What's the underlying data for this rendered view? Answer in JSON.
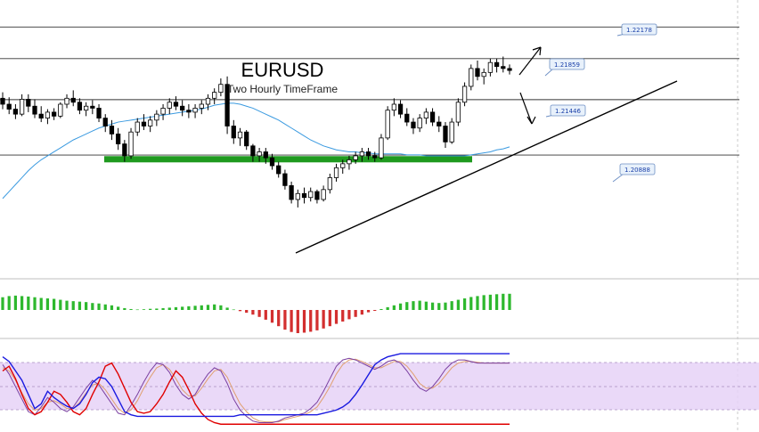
{
  "chart_data": {
    "type": "candlestick",
    "title": "EURUSD",
    "subtitle": "Two Hourly TimeFrame",
    "price_range": [
      1.1965,
      1.2245
    ],
    "horizontal_levels": [
      {
        "label": "1.22178",
        "value": 1.22178
      },
      {
        "label": "1.21859",
        "value": 1.21859
      },
      {
        "label": "1.21446",
        "value": 1.21446
      },
      {
        "label": "1.20888",
        "value": 1.20888
      }
    ],
    "support_zone": {
      "value": 1.2085,
      "color": "#1f9a1f"
    },
    "candles": [
      [
        1.2146,
        1.2152,
        1.2135,
        1.214
      ],
      [
        1.214,
        1.2147,
        1.213,
        1.2135
      ],
      [
        1.2135,
        1.214,
        1.2125,
        1.213
      ],
      [
        1.213,
        1.215,
        1.2128,
        1.2145
      ],
      [
        1.2145,
        1.215,
        1.2132,
        1.2138
      ],
      [
        1.2138,
        1.2145,
        1.2126,
        1.213
      ],
      [
        1.213,
        1.2138,
        1.2122,
        1.2126
      ],
      [
        1.2126,
        1.2135,
        1.212,
        1.2132
      ],
      [
        1.2132,
        1.2136,
        1.2124,
        1.2128
      ],
      [
        1.2128,
        1.2142,
        1.2126,
        1.214
      ],
      [
        1.214,
        1.215,
        1.2136,
        1.2146
      ],
      [
        1.2146,
        1.2154,
        1.2138,
        1.2142
      ],
      [
        1.2142,
        1.2146,
        1.213,
        1.2134
      ],
      [
        1.2134,
        1.2142,
        1.2128,
        1.2138
      ],
      [
        1.2138,
        1.2144,
        1.213,
        1.2136
      ],
      [
        1.2136,
        1.214,
        1.2122,
        1.2126
      ],
      [
        1.2126,
        1.213,
        1.2112,
        1.2118
      ],
      [
        1.2118,
        1.2124,
        1.2104,
        1.211
      ],
      [
        1.211,
        1.2116,
        1.2094,
        1.21
      ],
      [
        1.21,
        1.2104,
        1.2082,
        1.2088
      ],
      [
        1.2088,
        1.2116,
        1.2085,
        1.2112
      ],
      [
        1.2112,
        1.2126,
        1.2108,
        1.2122
      ],
      [
        1.2122,
        1.213,
        1.2114,
        1.2118
      ],
      [
        1.2118,
        1.2128,
        1.2112,
        1.2124
      ],
      [
        1.2124,
        1.2134,
        1.2118,
        1.213
      ],
      [
        1.213,
        1.214,
        1.2124,
        1.2136
      ],
      [
        1.2136,
        1.2146,
        1.213,
        1.2142
      ],
      [
        1.2142,
        1.2148,
        1.2134,
        1.2138
      ],
      [
        1.2138,
        1.2144,
        1.2128,
        1.2134
      ],
      [
        1.2134,
        1.214,
        1.2126,
        1.2132
      ],
      [
        1.2132,
        1.214,
        1.2126,
        1.2136
      ],
      [
        1.2136,
        1.2144,
        1.213,
        1.214
      ],
      [
        1.214,
        1.215,
        1.2134,
        1.2146
      ],
      [
        1.2146,
        1.2156,
        1.214,
        1.2152
      ],
      [
        1.2152,
        1.2166,
        1.2148,
        1.216
      ],
      [
        1.216,
        1.2168,
        1.211,
        1.2118
      ],
      [
        1.2118,
        1.2124,
        1.21,
        1.2106
      ],
      [
        1.2106,
        1.2116,
        1.2098,
        1.2112
      ],
      [
        1.2112,
        1.2114,
        1.2094,
        1.2098
      ],
      [
        1.2098,
        1.21,
        1.2082,
        1.2088
      ],
      [
        1.2088,
        1.2096,
        1.2082,
        1.2092
      ],
      [
        1.2092,
        1.2096,
        1.208,
        1.2086
      ],
      [
        1.2086,
        1.209,
        1.2074,
        1.2078
      ],
      [
        1.2078,
        1.2082,
        1.2066,
        1.207
      ],
      [
        1.207,
        1.2074,
        1.2054,
        1.2058
      ],
      [
        1.2058,
        1.2062,
        1.204,
        1.2044
      ],
      [
        1.2044,
        1.2054,
        1.2036,
        1.205
      ],
      [
        1.205,
        1.2056,
        1.204,
        1.2046
      ],
      [
        1.2046,
        1.2056,
        1.2042,
        1.2052
      ],
      [
        1.2052,
        1.2054,
        1.204,
        1.2044
      ],
      [
        1.2044,
        1.2058,
        1.2042,
        1.2054
      ],
      [
        1.2054,
        1.207,
        1.205,
        1.2066
      ],
      [
        1.2066,
        1.208,
        1.2062,
        1.2076
      ],
      [
        1.2076,
        1.2084,
        1.207,
        1.208
      ],
      [
        1.208,
        1.2088,
        1.2074,
        1.2084
      ],
      [
        1.2084,
        1.2092,
        1.208,
        1.2088
      ],
      [
        1.2088,
        1.2096,
        1.2082,
        1.2092
      ],
      [
        1.2092,
        1.2096,
        1.2084,
        1.2088
      ],
      [
        1.2088,
        1.2092,
        1.2082,
        1.2086
      ],
      [
        1.2086,
        1.211,
        1.2084,
        1.2106
      ],
      [
        1.2106,
        1.2138,
        1.2104,
        1.2134
      ],
      [
        1.2134,
        1.2146,
        1.2128,
        1.214
      ],
      [
        1.214,
        1.2144,
        1.2126,
        1.213
      ],
      [
        1.213,
        1.2136,
        1.2118,
        1.2122
      ],
      [
        1.2122,
        1.2126,
        1.211,
        1.2116
      ],
      [
        1.2116,
        1.213,
        1.2112,
        1.2126
      ],
      [
        1.2126,
        1.2136,
        1.212,
        1.2132
      ],
      [
        1.2132,
        1.2136,
        1.2118,
        1.2122
      ],
      [
        1.2122,
        1.2128,
        1.2112,
        1.2118
      ],
      [
        1.2118,
        1.2122,
        1.2096,
        1.2102
      ],
      [
        1.2102,
        1.2126,
        1.21,
        1.2122
      ],
      [
        1.2122,
        1.2146,
        1.2118,
        1.2142
      ],
      [
        1.2142,
        1.2162,
        1.2138,
        1.2158
      ],
      [
        1.2158,
        1.218,
        1.2154,
        1.2176
      ],
      [
        1.2176,
        1.2184,
        1.2164,
        1.2168
      ],
      [
        1.2168,
        1.2176,
        1.216,
        1.2172
      ],
      [
        1.2172,
        1.2186,
        1.2168,
        1.2182
      ],
      [
        1.2182,
        1.2186,
        1.2172,
        1.2178
      ],
      [
        1.2178,
        1.2188,
        1.2172,
        1.2176
      ],
      [
        1.2176,
        1.218,
        1.217,
        1.2174
      ]
    ],
    "moving_average": [
      1.2045,
      1.2052,
      1.2059,
      1.2066,
      1.2073,
      1.2079,
      1.2084,
      1.2088,
      1.2092,
      1.2096,
      1.21,
      1.2104,
      1.2107,
      1.211,
      1.2113,
      1.2116,
      1.2118,
      1.212,
      1.2122,
      1.2123,
      1.2124,
      1.2125,
      1.2126,
      1.2127,
      1.2128,
      1.2129,
      1.213,
      1.2131,
      1.2132,
      1.2133,
      1.2134,
      1.2135,
      1.2137,
      1.2139,
      1.214,
      1.2141,
      1.2141,
      1.214,
      1.2138,
      1.2136,
      1.2133,
      1.213,
      1.2127,
      1.2124,
      1.212,
      1.2116,
      1.2112,
      1.2108,
      1.2104,
      1.2101,
      1.2098,
      1.2096,
      1.2094,
      1.2093,
      1.2092,
      1.2092,
      1.2091,
      1.2091,
      1.209,
      1.209,
      1.209,
      1.209,
      1.209,
      1.2089,
      1.2089,
      1.2089,
      1.2088,
      1.2088,
      1.2088,
      1.2088,
      1.2088,
      1.2088,
      1.2088,
      1.2089,
      1.209,
      1.2091,
      1.2092,
      1.2094,
      1.2095,
      1.2097
    ],
    "histogram": [
      0.55,
      0.6,
      0.62,
      0.6,
      0.58,
      0.55,
      0.52,
      0.5,
      0.48,
      0.44,
      0.4,
      0.38,
      0.36,
      0.34,
      0.3,
      0.28,
      0.24,
      0.2,
      0.14,
      0.08,
      0.04,
      0.02,
      0.03,
      0.05,
      0.06,
      0.08,
      0.1,
      0.12,
      0.14,
      0.16,
      0.18,
      0.2,
      0.22,
      0.24,
      0.2,
      0.1,
      0.02,
      -0.05,
      -0.12,
      -0.2,
      -0.3,
      -0.42,
      -0.55,
      -0.7,
      -0.85,
      -0.95,
      -1.0,
      -0.98,
      -0.94,
      -0.88,
      -0.8,
      -0.7,
      -0.6,
      -0.5,
      -0.4,
      -0.3,
      -0.2,
      -0.1,
      -0.04,
      0.04,
      0.12,
      0.2,
      0.28,
      0.34,
      0.38,
      0.4,
      0.36,
      0.32,
      0.3,
      0.32,
      0.38,
      0.44,
      0.5,
      0.56,
      0.6,
      0.64,
      0.66,
      0.68,
      0.7,
      0.7
    ],
    "stochastic_blue": [
      88,
      82,
      70,
      58,
      40,
      22,
      28,
      44,
      36,
      30,
      25,
      22,
      28,
      40,
      55,
      62,
      60,
      50,
      34,
      18,
      14,
      12,
      12,
      12,
      12,
      12,
      12,
      12,
      12,
      12,
      12,
      12,
      12,
      12,
      12,
      12,
      12,
      14,
      14,
      14,
      14,
      14,
      14,
      14,
      14,
      14,
      14,
      14,
      14,
      14,
      16,
      18,
      20,
      24,
      30,
      40,
      52,
      65,
      78,
      84,
      88,
      90,
      92,
      92,
      92,
      92,
      92,
      92,
      92,
      92,
      92,
      92,
      92,
      92,
      92,
      92,
      92,
      92,
      92,
      92
    ],
    "stochastic_red": [
      70,
      76,
      60,
      40,
      22,
      14,
      18,
      30,
      44,
      40,
      30,
      18,
      14,
      22,
      40,
      56,
      76,
      80,
      66,
      48,
      30,
      18,
      16,
      18,
      28,
      40,
      56,
      70,
      62,
      46,
      28,
      16,
      8,
      4,
      2,
      2,
      2,
      2,
      2,
      2,
      2,
      2,
      2,
      2,
      2,
      2,
      2,
      2,
      2,
      2,
      2,
      2,
      2,
      2,
      2,
      2,
      2,
      2,
      2,
      2,
      2,
      2,
      2,
      2,
      2,
      2,
      2,
      2,
      2,
      2,
      2,
      2,
      2,
      2,
      2,
      2,
      2,
      2,
      2,
      2
    ],
    "stochastic_k": [
      78,
      66,
      50,
      34,
      18,
      14,
      24,
      36,
      30,
      22,
      18,
      24,
      36,
      48,
      58,
      52,
      40,
      28,
      16,
      14,
      26,
      40,
      56,
      70,
      80,
      78,
      68,
      52,
      40,
      34,
      40,
      54,
      66,
      74,
      70,
      54,
      34,
      20,
      12,
      6,
      4,
      4,
      4,
      6,
      10,
      12,
      14,
      16,
      22,
      30,
      44,
      60,
      76,
      84,
      86,
      84,
      80,
      76,
      72,
      76,
      82,
      84,
      80,
      70,
      58,
      48,
      44,
      50,
      60,
      72,
      80,
      84,
      84,
      82,
      80,
      80,
      80,
      80,
      80,
      80
    ],
    "stochastic_d": [
      74,
      70,
      58,
      42,
      28,
      20,
      22,
      30,
      32,
      28,
      22,
      22,
      30,
      42,
      52,
      54,
      46,
      34,
      22,
      16,
      20,
      32,
      48,
      62,
      74,
      78,
      72,
      60,
      46,
      38,
      38,
      48,
      60,
      70,
      72,
      62,
      44,
      28,
      18,
      10,
      6,
      5,
      5,
      5,
      8,
      10,
      12,
      14,
      18,
      24,
      36,
      50,
      66,
      78,
      84,
      85,
      82,
      78,
      74,
      74,
      78,
      82,
      82,
      76,
      66,
      54,
      48,
      48,
      54,
      64,
      74,
      80,
      82,
      82,
      81,
      80,
      80,
      80,
      80,
      80
    ]
  },
  "colors": {
    "up_candle": "#ffffff",
    "down_candle": "#000000",
    "candle_outline": "#000000",
    "moving_average": "#3a9ae0",
    "support_zone": "#1f9a1f",
    "histogram_up": "#2eb82e",
    "histogram_down": "#d32f2f",
    "oscillator_band": "#e6d2f7",
    "label_fill": "#e8f1fb",
    "label_stroke": "#6d8fc4",
    "label_text": "#1a3fa8"
  }
}
